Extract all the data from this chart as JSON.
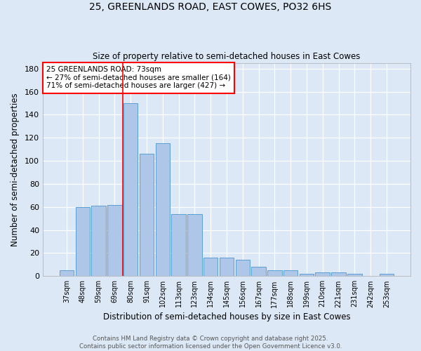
{
  "title1": "25, GREENLANDS ROAD, EAST COWES, PO32 6HS",
  "title2": "Size of property relative to semi-detached houses in East Cowes",
  "xlabel": "Distribution of semi-detached houses by size in East Cowes",
  "ylabel": "Number of semi-detached properties",
  "categories": [
    "37sqm",
    "48sqm",
    "59sqm",
    "69sqm",
    "80sqm",
    "91sqm",
    "102sqm",
    "113sqm",
    "123sqm",
    "134sqm",
    "145sqm",
    "156sqm",
    "167sqm",
    "177sqm",
    "188sqm",
    "199sqm",
    "210sqm",
    "221sqm",
    "231sqm",
    "242sqm",
    "253sqm"
  ],
  "values": [
    5,
    60,
    61,
    62,
    150,
    106,
    115,
    54,
    54,
    16,
    16,
    14,
    8,
    5,
    5,
    2,
    3,
    3,
    2,
    0,
    2
  ],
  "bar_color": "#aec6e8",
  "bar_edge_color": "#5a9fd4",
  "bg_color": "#dce8f5",
  "grid_color": "#ffffff",
  "vline_x": 3.5,
  "vline_color": "red",
  "annotation_text": "25 GREENLANDS ROAD: 73sqm\n← 27% of semi-detached houses are smaller (164)\n71% of semi-detached houses are larger (427) →",
  "annotation_box_color": "white",
  "annotation_box_edge": "red",
  "footnote": "Contains HM Land Registry data © Crown copyright and database right 2025.\nContains public sector information licensed under the Open Government Licence v3.0.",
  "ylim": [
    0,
    185
  ],
  "yticks": [
    0,
    20,
    40,
    60,
    80,
    100,
    120,
    140,
    160,
    180
  ]
}
